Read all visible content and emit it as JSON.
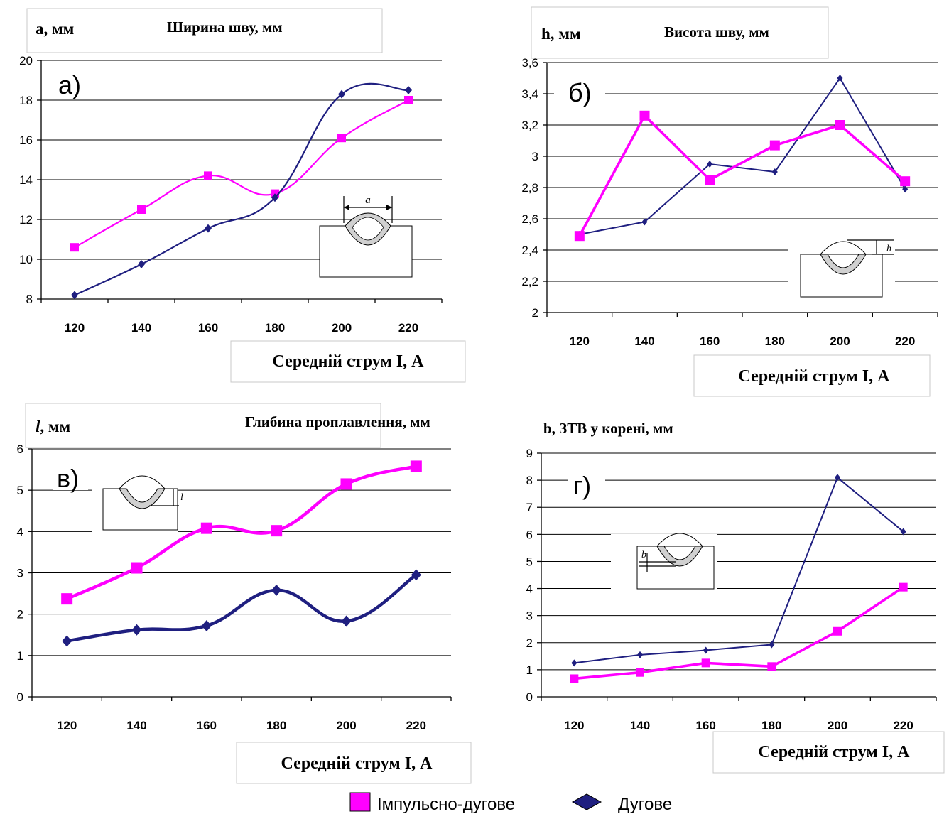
{
  "legend": {
    "pulse_label": "Імпульсно-дугове",
    "arc_label": "Дугове"
  },
  "colors": {
    "pulse": "#ff00ff",
    "arc": "#1f1f80"
  },
  "chart_data": [
    {
      "type": "line",
      "panel_label": "а)",
      "ylabel": "а, мм",
      "title": "Ширина шву, мм",
      "xlabel": "Середній струм I, А",
      "categories": [
        "120",
        "140",
        "160",
        "180",
        "200",
        "220"
      ],
      "ylim": [
        8,
        20
      ],
      "yticks": [
        "8",
        "10",
        "12",
        "14",
        "16",
        "18",
        "20"
      ],
      "smooth": true,
      "grid": true,
      "inset_label": "a",
      "series": [
        {
          "key": "pulse",
          "values": [
            10.6,
            12.5,
            14.2,
            13.3,
            16.1,
            18.0
          ]
        },
        {
          "key": "arc",
          "values": [
            8.2,
            9.75,
            11.55,
            13.1,
            18.3,
            18.5
          ]
        }
      ]
    },
    {
      "type": "line",
      "panel_label": "б)",
      "ylabel": "h, мм",
      "title": "Висота  шву, мм",
      "xlabel": "Середній струм I, А",
      "categories": [
        "120",
        "140",
        "160",
        "180",
        "200",
        "220"
      ],
      "ylim": [
        2,
        3.6
      ],
      "yticks": [
        "2",
        "2,2",
        "2,4",
        "2,6",
        "2,8",
        "3",
        "3,2",
        "3,4",
        "3,6"
      ],
      "smooth": false,
      "grid": true,
      "inset_label": "h",
      "series": [
        {
          "key": "pulse",
          "values": [
            2.49,
            3.26,
            2.85,
            3.07,
            3.2,
            2.84
          ]
        },
        {
          "key": "arc",
          "values": [
            2.5,
            2.58,
            2.95,
            2.9,
            3.5,
            2.79
          ]
        }
      ]
    },
    {
      "type": "line",
      "panel_label": "в)",
      "ylabel": "l, мм",
      "title": "Глибина проплавлення, мм",
      "xlabel": "Середній струм I, А",
      "categories": [
        "120",
        "140",
        "160",
        "180",
        "200",
        "220"
      ],
      "ylim": [
        0,
        6
      ],
      "yticks": [
        "0",
        "1",
        "2",
        "3",
        "4",
        "5",
        "6"
      ],
      "smooth": true,
      "grid": true,
      "inset_label": "l",
      "series": [
        {
          "key": "pulse",
          "values": [
            2.37,
            3.12,
            4.08,
            4.02,
            5.15,
            5.58
          ]
        },
        {
          "key": "arc",
          "values": [
            1.35,
            1.62,
            1.72,
            2.58,
            1.83,
            2.95
          ]
        }
      ]
    },
    {
      "type": "line",
      "panel_label": "г)",
      "ylabel": "",
      "title": "b, ЗТВ у корені, мм",
      "xlabel": "Середній струм I, А",
      "categories": [
        "120",
        "140",
        "160",
        "180",
        "200",
        "220"
      ],
      "ylim": [
        0,
        9
      ],
      "yticks": [
        "0",
        "1",
        "2",
        "3",
        "4",
        "5",
        "6",
        "7",
        "8",
        "9"
      ],
      "smooth": false,
      "grid": true,
      "inset_label": "b",
      "series": [
        {
          "key": "pulse",
          "values": [
            0.67,
            0.9,
            1.25,
            1.12,
            2.42,
            4.05
          ]
        },
        {
          "key": "arc",
          "values": [
            1.25,
            1.55,
            1.72,
            1.93,
            8.1,
            6.1
          ]
        }
      ]
    }
  ]
}
